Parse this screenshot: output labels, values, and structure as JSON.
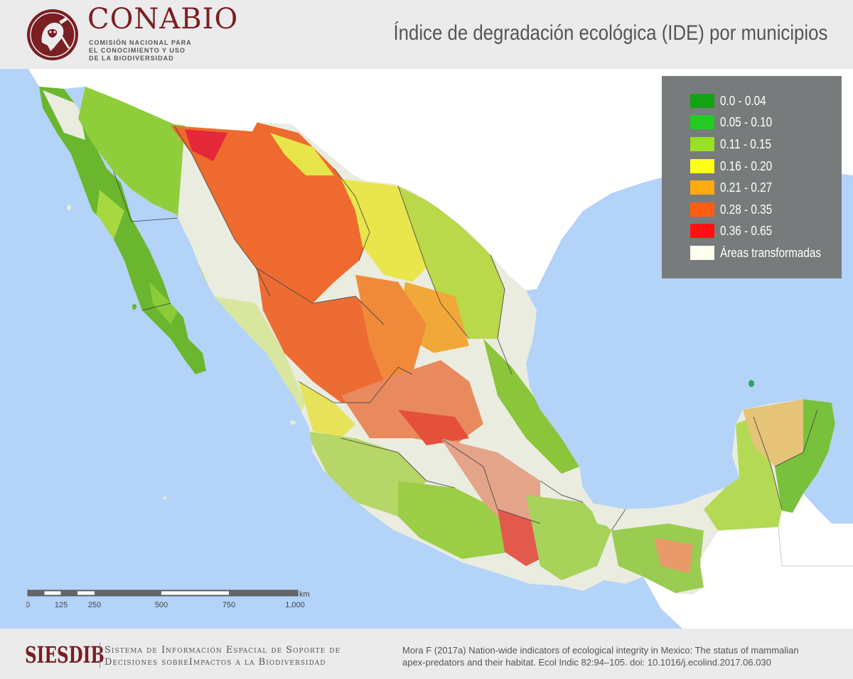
{
  "header": {
    "org_name": "CONABIO",
    "org_subtitle_lines": [
      "COMISIÓN NACIONAL PARA",
      "EL CONOCIMIENTO Y USO",
      "DE LA BIODIVERSIDAD"
    ],
    "map_title": "Índice de degradación ecológica (IDE) por municipios",
    "brand_color": "#7a1f22"
  },
  "legend": {
    "items": [
      {
        "label": "0.0 - 0.04",
        "color": "#12a312"
      },
      {
        "label": "0.05 - 0.10",
        "color": "#22cc22"
      },
      {
        "label": "0.11 - 0.15",
        "color": "#99df22"
      },
      {
        "label": "0.16 - 0.20",
        "color": "#ffff19"
      },
      {
        "label": "0.21 - 0.27",
        "color": "#ffaa11"
      },
      {
        "label": "0.28 - 0.35",
        "color": "#ff5e12"
      },
      {
        "label": "0.36 - 0.65",
        "color": "#ff1111"
      },
      {
        "label": "Áreas transformadas",
        "color": "#fffff0"
      }
    ]
  },
  "scale_bar": {
    "unit": "km",
    "ticks": [
      "0",
      "125",
      "250",
      "500",
      "750",
      "1,000"
    ]
  },
  "footer": {
    "siesdib_name": "SIESDIB",
    "siesdib_desc_line1": "Sistema de Información Espacial de Soporte de",
    "siesdib_desc_line2": "Decisiones sobreImpactos a la Biodiversidad",
    "citation_line1": "Mora F (2017a) Nation-wide indicators of ecological integrity in Mexico: The status of mammalian",
    "citation_line2": "apex-predators and their habitat. Ecol Indic 82:94–105. doi: 10.1016/j.ecolind.2017.06.030"
  },
  "map": {
    "water_color": "#b3d3f8",
    "land_neighbor_color": "#ffffff",
    "icon": "mexico-choropleth-map"
  }
}
